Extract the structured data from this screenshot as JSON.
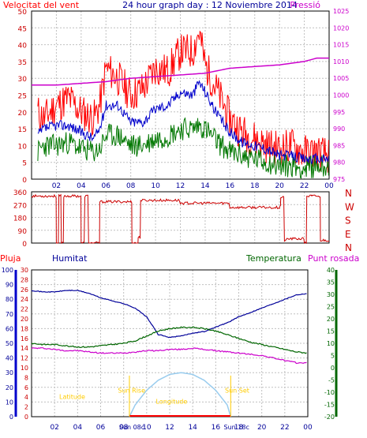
{
  "chart_data": [
    {
      "type": "line",
      "title": "24 hour graph day : 12 Noviembre 2014",
      "left_axis_label": "Velocitat del vent",
      "right_axis_label": "Pressió",
      "x_ticks": [
        "02",
        "04",
        "06",
        "08",
        "10",
        "12",
        "14",
        "16",
        "18",
        "20",
        "22",
        "00"
      ],
      "y_left_ticks": [
        "0",
        "5",
        "10",
        "15",
        "20",
        "25",
        "30",
        "35",
        "40",
        "45",
        "50"
      ],
      "y_left_range": [
        0,
        50
      ],
      "y_right_ticks": [
        "975",
        "980",
        "985",
        "990",
        "995",
        "1000",
        "1005",
        "1010",
        "1015",
        "1020",
        "1025"
      ],
      "y_right_range": [
        975,
        1025
      ],
      "colors": {
        "gust": "#ff0000",
        "average": "#0000cc",
        "low": "#007700",
        "pressure": "#cc00cc",
        "grid": "#c0c0c0"
      },
      "series": [
        {
          "key": "gust",
          "x": [
            0.5,
            1,
            2,
            3,
            4,
            5,
            5.5,
            6,
            7,
            8,
            9,
            10,
            11,
            12,
            13,
            13.5,
            14,
            15,
            16,
            17,
            18,
            19,
            20,
            21,
            22,
            23,
            24
          ],
          "values": [
            20,
            18,
            22,
            24,
            20,
            18,
            22,
            33,
            30,
            25,
            27,
            33,
            32,
            38,
            38,
            44,
            34,
            26,
            18,
            14,
            12,
            10,
            9,
            10,
            8,
            8,
            7
          ]
        },
        {
          "key": "average",
          "x": [
            0.5,
            1,
            2,
            3,
            4,
            5,
            5.5,
            6,
            7,
            8,
            9,
            10,
            11,
            12,
            13,
            13.5,
            14,
            15,
            16,
            17,
            18,
            19,
            20,
            21,
            22,
            23,
            24
          ],
          "values": [
            13,
            15,
            16,
            16,
            14,
            12,
            15,
            22,
            22,
            17,
            17,
            21,
            22,
            26,
            25,
            29,
            26,
            19,
            14,
            11,
            10,
            9,
            7,
            7,
            6,
            6,
            6
          ]
        },
        {
          "key": "low",
          "x": [
            0.5,
            1,
            2,
            3,
            4,
            5,
            5.5,
            6,
            7,
            8,
            9,
            10,
            11,
            12,
            13,
            13.5,
            14,
            15,
            16,
            17,
            18,
            19,
            20,
            21,
            22,
            23,
            24
          ],
          "values": [
            8,
            10,
            10,
            11,
            9,
            8,
            9,
            13,
            13,
            10,
            10,
            12,
            13,
            15,
            15,
            16,
            15,
            11,
            8,
            7,
            6,
            5,
            4,
            4,
            3,
            4,
            4
          ]
        },
        {
          "key": "pressure",
          "axis": "right",
          "x": [
            0,
            2,
            4,
            6,
            8,
            10,
            12,
            14,
            16,
            18,
            20,
            22,
            23,
            24
          ],
          "values": [
            1003,
            1003,
            1003.5,
            1004,
            1005,
            1005.5,
            1006,
            1006.5,
            1008,
            1008.5,
            1009,
            1010,
            1011,
            1011
          ]
        }
      ]
    },
    {
      "type": "line",
      "direction_ticks": [
        "360",
        "270",
        "180",
        "90",
        "0"
      ],
      "direction_range": [
        0,
        360
      ],
      "compass_labels": [
        "N",
        "W",
        "S",
        "E",
        "N"
      ],
      "color": "#cc0000",
      "series": [
        {
          "key": "wind_direction",
          "x": [
            0,
            1.9,
            2,
            2.2,
            2.4,
            2.6,
            3.9,
            4,
            4.3,
            4.6,
            5.5,
            8,
            8.1,
            8.6,
            8.8,
            12,
            16,
            20,
            20.1,
            20.4,
            20.6,
            22,
            22.2,
            22.6,
            23.2,
            23.3,
            23.6,
            24
          ],
          "values": [
            330,
            330,
            0,
            330,
            0,
            330,
            330,
            0,
            330,
            0,
            290,
            290,
            0,
            40,
            300,
            280,
            250,
            260,
            320,
            20,
            30,
            0,
            330,
            330,
            320,
            20,
            20,
            330
          ]
        }
      ]
    },
    {
      "type": "line",
      "labels": {
        "rain": "Pluja",
        "humidity": "Humitat",
        "temperature": "Temperatura",
        "dew_point": "Punt rosada"
      },
      "y_humidity_ticks": [
        "0",
        "10",
        "20",
        "30",
        "40",
        "50",
        "60",
        "70",
        "80",
        "90",
        "100"
      ],
      "y_humidity_range": [
        0,
        100
      ],
      "y_rain_ticks": [
        "0",
        "2",
        "4",
        "6",
        "8",
        "10",
        "12",
        "14",
        "16",
        "18",
        "20",
        "22",
        "24",
        "26",
        "28",
        "30"
      ],
      "y_rain_range": [
        0,
        30
      ],
      "y_temp_ticks": [
        "-20",
        "-15",
        "-10",
        "-5",
        "0",
        "5",
        "10",
        "15",
        "20",
        "25",
        "30",
        "35",
        "40"
      ],
      "y_temp_range": [
        -20,
        40
      ],
      "x_ticks": [
        "02",
        "04",
        "06",
        "08",
        "10",
        "12",
        "14",
        "16",
        "18",
        "20",
        "22",
        "00"
      ],
      "sun_labels": {
        "sunrise": "Sun Rise",
        "sunset": "Sun Set",
        "longitude": "Longitude",
        "latitude": "Latitude",
        "sun_08": "Sun 08c",
        "sun_18": "Sun 18c"
      },
      "colors": {
        "humidity": "#000099",
        "temperature": "#006600",
        "dew_point": "#cc00cc",
        "rain": "#ff0000",
        "sun": "#99ccee"
      },
      "series": [
        {
          "key": "humidity",
          "x": [
            0,
            1,
            2,
            3,
            4,
            5,
            6,
            7,
            8,
            9,
            10,
            10.5,
            11,
            12,
            13,
            14,
            15,
            16,
            17,
            18,
            19,
            20,
            21,
            22,
            23,
            24
          ],
          "values": [
            86,
            85,
            85,
            86,
            86,
            84,
            81,
            79,
            77,
            74,
            68,
            62,
            56,
            54,
            55,
            57,
            58,
            61,
            64,
            68,
            71,
            74,
            77,
            80,
            83,
            84
          ]
        },
        {
          "key": "temperature",
          "x": [
            0,
            1,
            2,
            3,
            4,
            5,
            6,
            7,
            8,
            9,
            10,
            11,
            12,
            13,
            14,
            15,
            16,
            17,
            18,
            19,
            20,
            21,
            22,
            23,
            24
          ],
          "values": [
            10,
            9.5,
            9.5,
            9,
            8.5,
            8.5,
            9,
            9.5,
            10,
            11,
            13,
            15,
            16,
            16.5,
            16.5,
            16,
            15,
            13.5,
            12,
            10.5,
            9.5,
            8.5,
            7.5,
            6.5,
            6
          ]
        },
        {
          "key": "dew_point",
          "x": [
            0,
            1,
            2,
            3,
            4,
            5,
            6,
            7,
            8,
            9,
            10,
            11,
            12,
            13,
            14,
            15,
            16,
            17,
            18,
            19,
            20,
            21,
            22,
            23,
            24
          ],
          "values": [
            8,
            8,
            7.5,
            7,
            7,
            6.5,
            6,
            6,
            6,
            6.5,
            7,
            7,
            7.5,
            7.5,
            8,
            7.5,
            7,
            6.5,
            6,
            5.5,
            5,
            4,
            3,
            2,
            2
          ]
        },
        {
          "key": "sun",
          "x": [
            8.5,
            9,
            10,
            11,
            12,
            13,
            14,
            15,
            16,
            17,
            17.3
          ],
          "values": [
            0,
            20,
            45,
            62,
            72,
            75,
            72,
            62,
            45,
            20,
            0
          ]
        }
      ]
    }
  ]
}
